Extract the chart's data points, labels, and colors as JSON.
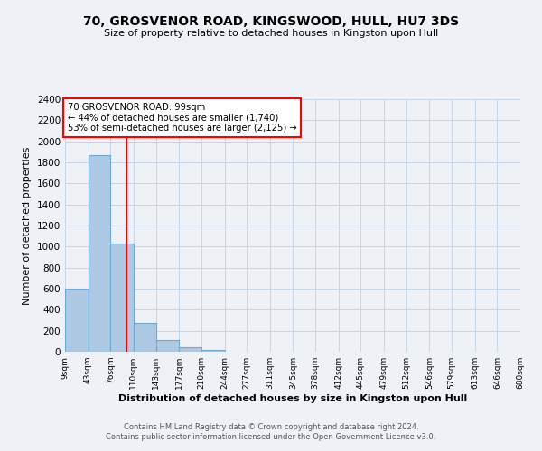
{
  "title1": "70, GROSVENOR ROAD, KINGSWOOD, HULL, HU7 3DS",
  "title2": "Size of property relative to detached houses in Kingston upon Hull",
  "xlabel": "Distribution of detached houses by size in Kingston upon Hull",
  "ylabel": "Number of detached properties",
  "bin_edges": [
    9,
    43,
    76,
    110,
    143,
    177,
    210,
    244,
    277,
    311,
    345,
    378,
    412,
    445,
    479,
    512,
    546,
    579,
    613,
    646,
    680
  ],
  "bin_labels": [
    "9sqm",
    "43sqm",
    "76sqm",
    "110sqm",
    "143sqm",
    "177sqm",
    "210sqm",
    "244sqm",
    "277sqm",
    "311sqm",
    "345sqm",
    "378sqm",
    "412sqm",
    "445sqm",
    "479sqm",
    "512sqm",
    "546sqm",
    "579sqm",
    "613sqm",
    "646sqm",
    "680sqm"
  ],
  "bar_heights": [
    600,
    1870,
    1030,
    275,
    115,
    45,
    20,
    0,
    0,
    0,
    0,
    0,
    0,
    0,
    0,
    0,
    0,
    0,
    0,
    0
  ],
  "bar_color": "#adc9e4",
  "bar_edge_color": "#6aaad4",
  "vline_x": 99,
  "vline_color": "red",
  "annotation_line1": "70 GROSVENOR ROAD: 99sqm",
  "annotation_line2": "← 44% of detached houses are smaller (1,740)",
  "annotation_line3": "53% of semi-detached houses are larger (2,125) →",
  "annotation_box_color": "white",
  "annotation_box_edge_color": "red",
  "ylim": [
    0,
    2400
  ],
  "yticks": [
    0,
    200,
    400,
    600,
    800,
    1000,
    1200,
    1400,
    1600,
    1800,
    2000,
    2200,
    2400
  ],
  "footer1": "Contains HM Land Registry data © Crown copyright and database right 2024.",
  "footer2": "Contains public sector information licensed under the Open Government Licence v3.0.",
  "background_color": "#eef2f7",
  "grid_color": "#c5d5e8"
}
